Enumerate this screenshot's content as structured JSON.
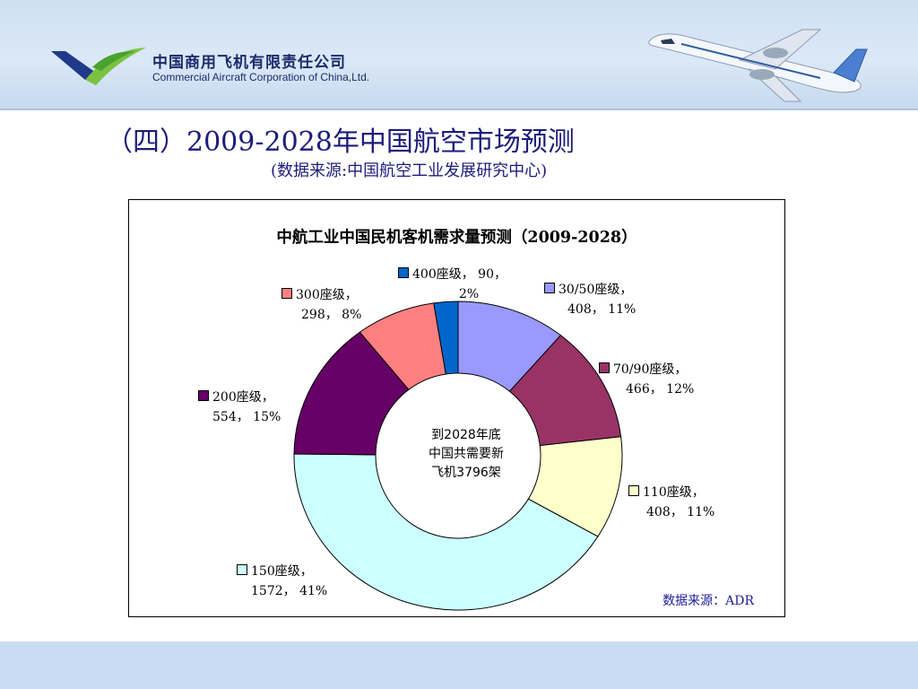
{
  "header": {
    "company_cn": "中国商用飞机有限责任公司",
    "company_en": "Commercial Aircraft Corporation of China,Ltd."
  },
  "slide": {
    "title": "（四）2009-2028年中国航空市场预测",
    "subtitle": "(数据来源:中国航空工业发展研究中心)"
  },
  "chart_data": {
    "type": "pie",
    "title": "中航工业中国民机客机需求量预测（2009-2028）",
    "center_text": [
      "到2028年底",
      "中国共需要新",
      "飞机3796架"
    ],
    "source": "数据来源：ADR",
    "slices": [
      {
        "name": "30/50座级",
        "value": 408,
        "percent": "11%",
        "color": "#9999ff",
        "line1": "30/50座级，",
        "line2": "408， 11%"
      },
      {
        "name": "70/90座级",
        "value": 466,
        "percent": "12%",
        "color": "#993366",
        "line1": "70/90座级，",
        "line2": "466， 12%"
      },
      {
        "name": "110座级",
        "value": 408,
        "percent": "11%",
        "color": "#ffffcc",
        "line1": "110座级，",
        "line2": "408， 11%"
      },
      {
        "name": "150座级",
        "value": 1572,
        "percent": "41%",
        "color": "#ccffff",
        "line1": "150座级，",
        "line2": "1572， 41%"
      },
      {
        "name": "200座级",
        "value": 554,
        "percent": "15%",
        "color": "#660066",
        "line1": "200座级，",
        "line2": "554， 15%"
      },
      {
        "name": "300座级",
        "value": 298,
        "percent": "8%",
        "color": "#ff8080",
        "line1": "300座级，",
        "line2": "298， 8%"
      },
      {
        "name": "400座级",
        "value": 90,
        "percent": "2%",
        "color": "#0066cc",
        "line1": "400座级， 90，",
        "line2": "2%"
      }
    ]
  }
}
